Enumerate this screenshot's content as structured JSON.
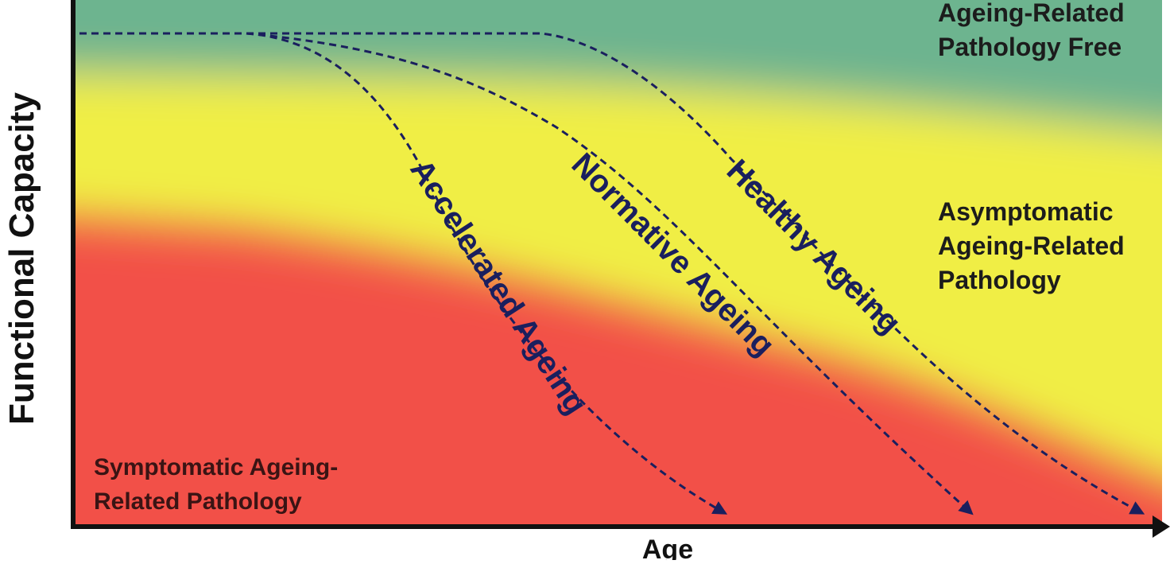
{
  "axes": {
    "y_label": "Functional Capacity",
    "x_label": "Age"
  },
  "zones": [
    {
      "lines": [
        "Ageing-Related",
        "Pathology Free"
      ]
    },
    {
      "lines": [
        "Asymptomatic",
        "Ageing-Related",
        "Pathology"
      ]
    },
    {
      "lines": [
        "Symptomatic Ageing-",
        "Related Pathology"
      ]
    }
  ],
  "trajectories": [
    {
      "label": "Accelerated Ageing"
    },
    {
      "label": "Normative Ageing"
    },
    {
      "label": "Healthy Ageing"
    }
  ]
}
